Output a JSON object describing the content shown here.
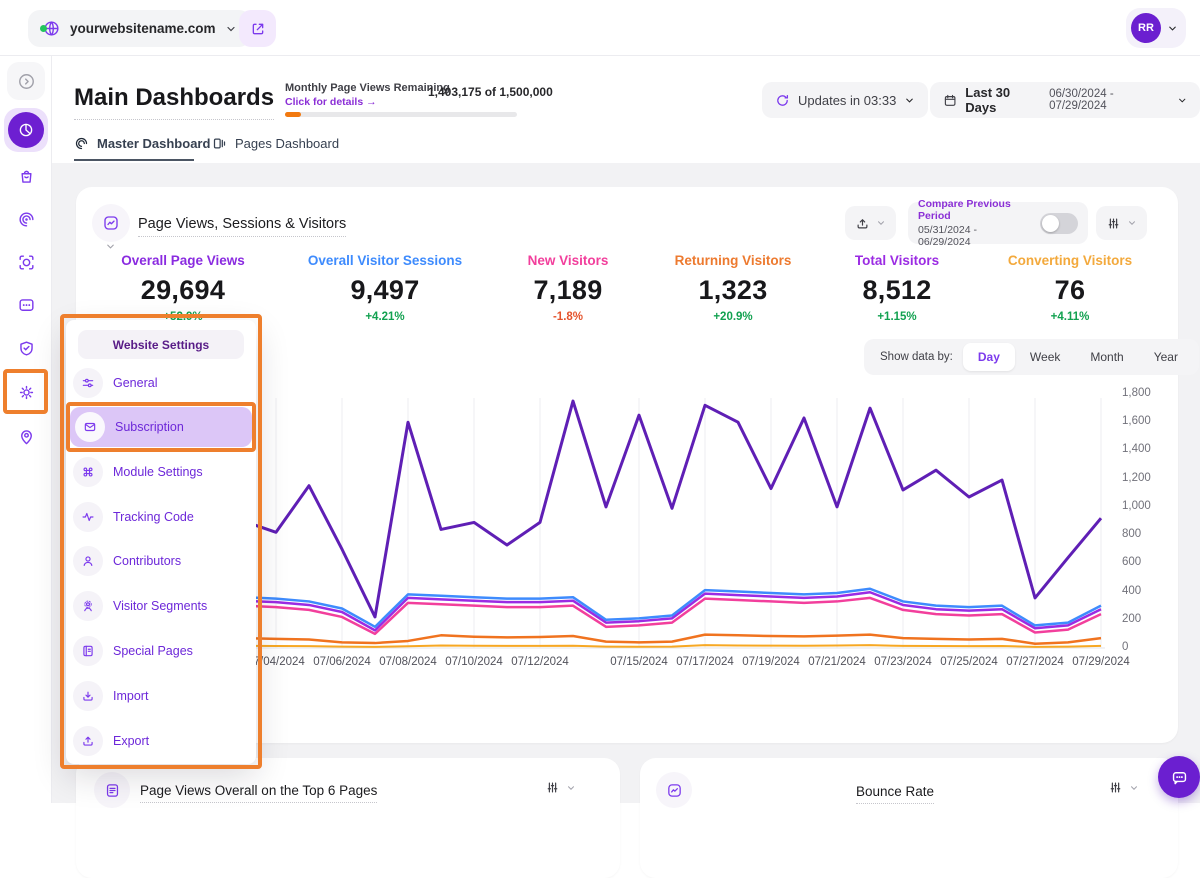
{
  "topbar": {
    "website": "yourwebsitename.com",
    "avatar_initials": "RR"
  },
  "header": {
    "title": "Main Dashboards",
    "quota_label": "Monthly Page Views Remaining",
    "quota_link": "Click for details →",
    "quota_value": "1,403,175 of 1,500,000",
    "quota_used_pct": "7%",
    "updates_label": "Updates in 03:33",
    "range_label": "Last 30 Days",
    "range_dates": "06/30/2024 - 07/29/2024"
  },
  "tabs": {
    "master": "Master Dashboard",
    "pages": "Pages Dashboard"
  },
  "panel": {
    "title": "Page Views, Sessions & Visitors",
    "compare_label": "Compare Previous Period",
    "compare_dates": "05/31/2024 - 06/29/2024",
    "show_data_by": {
      "label": "Show data by:",
      "options": [
        "Day",
        "Week",
        "Month",
        "Year"
      ],
      "selected": "Day"
    }
  },
  "metrics": [
    {
      "label": "Overall Page Views",
      "value": "29,694",
      "delta": "+52.9%",
      "color": "#8a2be0",
      "delta_dir": "up"
    },
    {
      "label": "Overall Visitor Sessions",
      "value": "9,497",
      "delta": "+4.21%",
      "color": "#3e8bfd",
      "delta_dir": "up"
    },
    {
      "label": "New Visitors",
      "value": "7,189",
      "delta": "-1.8%",
      "color": "#f23f9c",
      "delta_dir": "down"
    },
    {
      "label": "Returning Visitors",
      "value": "1,323",
      "delta": "+20.9%",
      "color": "#ed7a2f",
      "delta_dir": "up"
    },
    {
      "label": "Total Visitors",
      "value": "8,512",
      "delta": "+1.15%",
      "color": "#9b2be3",
      "delta_dir": "up"
    },
    {
      "label": "Converting Visitors",
      "value": "76",
      "delta": "+4.11%",
      "color": "#f3a93c",
      "delta_dir": "up"
    }
  ],
  "chart_data": {
    "type": "line",
    "title": "Page Views, Sessions & Visitors",
    "xlabel": "",
    "ylabel": "",
    "ylim": [
      0,
      1800
    ],
    "grid": "vertical",
    "legend_position": "none",
    "ytick_labels": [
      "1,800",
      "1,600",
      "1,400",
      "1,200",
      "1,000",
      "800",
      "600",
      "400",
      "200",
      "0"
    ],
    "x": [
      "07/03/2024",
      "07/04/2024",
      "07/05/2024",
      "07/06/2024",
      "07/07/2024",
      "07/08/2024",
      "07/09/2024",
      "07/10/2024",
      "07/11/2024",
      "07/12/2024",
      "07/13/2024",
      "07/14/2024",
      "07/15/2024",
      "07/16/2024",
      "07/17/2024",
      "07/18/2024",
      "07/19/2024",
      "07/20/2024",
      "07/21/2024",
      "07/22/2024",
      "07/23/2024",
      "07/24/2024",
      "07/25/2024",
      "07/26/2024",
      "07/27/2024",
      "07/28/2024",
      "07/29/2024"
    ],
    "x_label_indices": [
      1,
      3,
      5,
      7,
      9,
      12,
      14,
      16,
      18,
      20,
      22,
      24,
      26
    ],
    "series": [
      {
        "name": "Converting Visitors",
        "color": "#f7a823",
        "width": 2,
        "values": [
          15,
          14,
          13,
          10,
          8,
          12,
          18,
          16,
          15,
          15,
          16,
          10,
          9,
          10,
          20,
          18,
          17,
          16,
          18,
          20,
          15,
          14,
          13,
          14,
          8,
          10,
          15
        ]
      },
      {
        "name": "Returning Visitors",
        "color": "#f0731f",
        "width": 2.5,
        "values": [
          70,
          65,
          60,
          40,
          35,
          50,
          90,
          80,
          75,
          78,
          85,
          45,
          40,
          45,
          95,
          90,
          85,
          82,
          88,
          95,
          70,
          65,
          60,
          65,
          30,
          40,
          70
        ]
      },
      {
        "name": "New Visitors",
        "color": "#f23f9c",
        "width": 2.5,
        "values": [
          300,
          290,
          270,
          220,
          100,
          320,
          310,
          300,
          290,
          290,
          300,
          150,
          160,
          180,
          350,
          340,
          330,
          320,
          330,
          355,
          270,
          240,
          230,
          240,
          110,
          130,
          240
        ]
      },
      {
        "name": "Total Visitors",
        "color": "#9b2be3",
        "width": 2.5,
        "values": [
          335,
          325,
          305,
          255,
          125,
          355,
          345,
          335,
          325,
          325,
          335,
          180,
          190,
          210,
          385,
          375,
          365,
          355,
          365,
          395,
          305,
          275,
          265,
          275,
          140,
          160,
          275
        ]
      },
      {
        "name": "Overall Visitor Sessions",
        "color": "#3e8bfd",
        "width": 2.5,
        "values": [
          360,
          350,
          330,
          280,
          150,
          380,
          370,
          360,
          350,
          350,
          360,
          200,
          210,
          230,
          410,
          400,
          390,
          380,
          390,
          420,
          330,
          300,
          290,
          300,
          160,
          180,
          300
        ]
      },
      {
        "name": "Overall Page Views",
        "color": "#5f1fb5",
        "width": 3,
        "values": [
          900,
          820,
          1150,
          700,
          220,
          1600,
          840,
          890,
          730,
          890,
          1750,
          1000,
          1650,
          990,
          1720,
          1600,
          1130,
          1630,
          1000,
          1700,
          1120,
          1260,
          1070,
          1190,
          355,
          640,
          920
        ]
      }
    ]
  },
  "menu": {
    "header": "Website Settings",
    "items": [
      {
        "label": "General"
      },
      {
        "label": "Subscription",
        "active": true
      },
      {
        "label": "Module Settings"
      },
      {
        "label": "Tracking Code"
      },
      {
        "label": "Contributors"
      },
      {
        "label": "Visitor Segments"
      },
      {
        "label": "Special Pages"
      },
      {
        "label": "Import"
      },
      {
        "label": "Export"
      }
    ]
  },
  "bottom_cards": {
    "left_title": "Page Views Overall on the Top 6 Pages",
    "right_title": "Bounce Rate"
  }
}
